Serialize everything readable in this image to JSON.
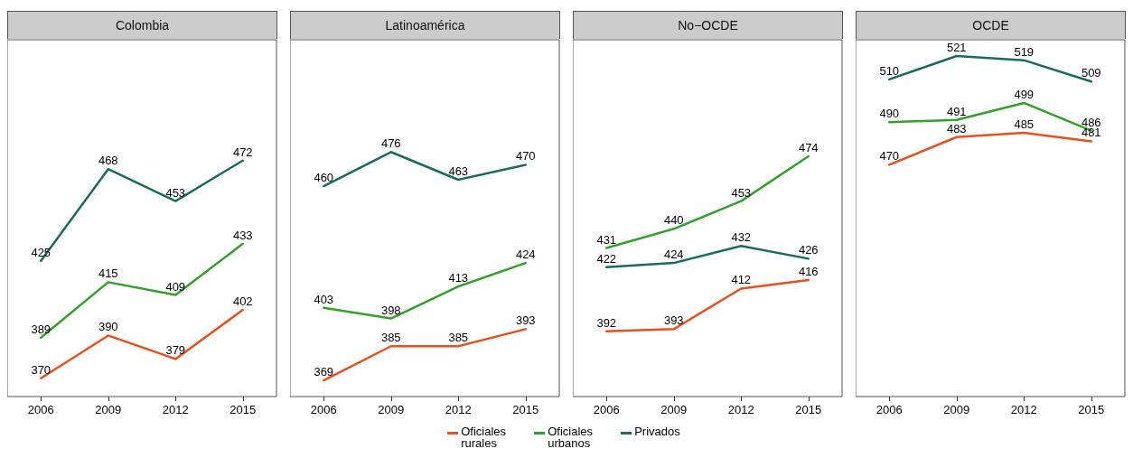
{
  "chart_data": [
    {
      "type": "line",
      "title": "Colombia",
      "categories": [
        "2006",
        "2009",
        "2012",
        "2015"
      ],
      "data_labels": true,
      "legend": "bottom",
      "series": [
        {
          "name": "Oficiales rurales",
          "color": "#e8501e",
          "values": [
            370,
            390,
            379,
            402
          ]
        },
        {
          "name": "Oficiales urbanos",
          "color": "#33a02c",
          "values": [
            389,
            415,
            409,
            433
          ]
        },
        {
          "name": "Privados",
          "color": "#1b6b5a",
          "values": [
            425,
            468,
            453,
            472
          ]
        }
      ]
    },
    {
      "type": "line",
      "title": "Latinoamérica",
      "categories": [
        "2006",
        "2009",
        "2012",
        "2015"
      ],
      "data_labels": true,
      "series": [
        {
          "color": "#e8501e",
          "values": [
            369,
            385,
            385,
            393
          ]
        },
        {
          "color": "#33a02c",
          "values": [
            403,
            398,
            413,
            424
          ]
        },
        {
          "color": "#1b6b5a",
          "values": [
            460,
            476,
            463,
            470
          ]
        }
      ]
    },
    {
      "type": "line",
      "title": "No−OCDE",
      "categories": [
        "2006",
        "2009",
        "2012",
        "2015"
      ],
      "data_labels": true,
      "series": [
        {
          "color": "#e8501e",
          "values": [
            392,
            393,
            412,
            416
          ]
        },
        {
          "color": "#33a02c",
          "values": [
            431,
            440,
            453,
            474
          ]
        },
        {
          "color": "#1b6b5a",
          "values": [
            422,
            424,
            432,
            426
          ]
        }
      ]
    },
    {
      "type": "line",
      "title": "OCDE",
      "categories": [
        "2006",
        "2009",
        "2012",
        "2015"
      ],
      "data_labels": true,
      "series": [
        {
          "color": "#e8501e",
          "values": [
            470,
            483,
            485,
            481
          ]
        },
        {
          "color": "#33a02c",
          "values": [
            490,
            491,
            499,
            486
          ]
        },
        {
          "color": "#1b6b5a",
          "values": [
            510,
            521,
            519,
            509
          ]
        }
      ]
    }
  ]
}
